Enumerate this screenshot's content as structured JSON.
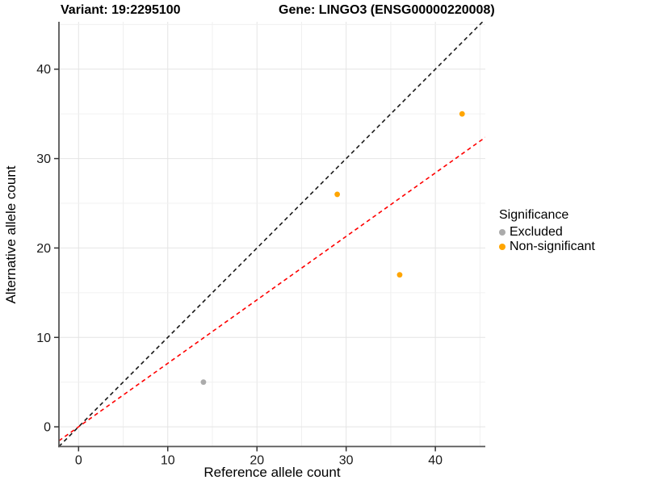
{
  "titles": {
    "left": "Variant: 19:2295100",
    "right": "Gene: LINGO3 (ENSG00000220008)"
  },
  "chart_data": {
    "type": "scatter",
    "xlabel": "Reference allele count",
    "ylabel": "Alternative allele count",
    "xlim": [
      -2.2,
      45.6
    ],
    "ylim": [
      -2.2,
      45.3
    ],
    "x_ticks": [
      0,
      10,
      20,
      30,
      40
    ],
    "y_ticks": [
      0,
      10,
      20,
      30,
      40
    ],
    "grid": "on",
    "grid_step": 5,
    "legend": {
      "title": "Significance",
      "position": "right",
      "entries": [
        {
          "label": "Excluded",
          "color": "#ABABAB"
        },
        {
          "label": "Non-significant",
          "color": "#FFA500"
        }
      ]
    },
    "series": [
      {
        "name": "Excluded",
        "color": "#ABABAB",
        "points": [
          {
            "x": 14,
            "y": 5
          }
        ]
      },
      {
        "name": "Non-significant",
        "color": "#FFA500",
        "points": [
          {
            "x": 29,
            "y": 26
          },
          {
            "x": 36,
            "y": 17
          },
          {
            "x": 43,
            "y": 35
          }
        ]
      }
    ],
    "lines": [
      {
        "name": "identity-line",
        "slope": 1,
        "intercept": 0,
        "color": "#1A1A1A",
        "dashed": true
      },
      {
        "name": "expected-ratio-line",
        "slope": 0.71,
        "intercept": 0,
        "color": "#FF0000",
        "dashed": true
      }
    ]
  },
  "colors": {
    "axis_line": "#555555",
    "tick": "#333333",
    "tick_label": "#1A1A1A",
    "grid_major": "#E4E4E4",
    "grid_minor": "#F0F0F0",
    "background": "#FFFFFF"
  }
}
